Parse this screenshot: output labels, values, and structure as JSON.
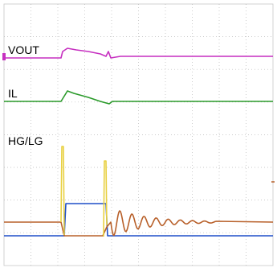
{
  "labels": {
    "vout": "VOUT",
    "il": "IL",
    "hglg": "HG/LG"
  }
}
